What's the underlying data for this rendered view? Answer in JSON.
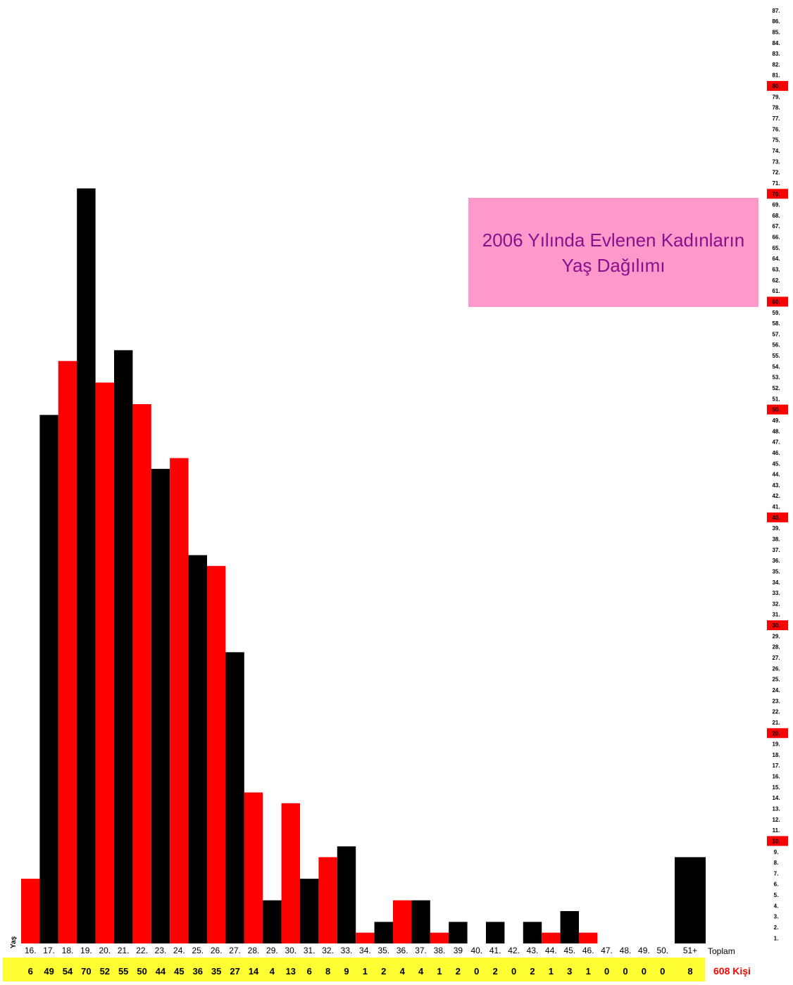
{
  "chart_data": {
    "type": "bar",
    "title_line1": "2006 Yılında Evlenen Kadınların",
    "title_line2": "Yaş Dağılımı",
    "xlabel": "Yaş",
    "categories": [
      "16.",
      "17.",
      "18.",
      "19.",
      "20.",
      "21.",
      "22.",
      "23.",
      "24.",
      "25.",
      "26.",
      "27.",
      "28.",
      "29.",
      "30.",
      "31.",
      "32.",
      "33.",
      "34.",
      "35.",
      "36.",
      "37.",
      "38.",
      "39",
      "40.",
      "41.",
      "42.",
      "43.",
      "44.",
      "45.",
      "46.",
      "47.",
      "48.",
      "49.",
      "50.",
      "51+"
    ],
    "values": [
      6,
      49,
      54,
      70,
      52,
      55,
      50,
      44,
      45,
      36,
      35,
      27,
      14,
      4,
      13,
      6,
      8,
      9,
      1,
      2,
      4,
      4,
      1,
      2,
      0,
      2,
      0,
      2,
      1,
      3,
      1,
      0,
      0,
      0,
      0,
      8
    ],
    "bar_colors": [
      "#ff0000",
      "#000000"
    ],
    "ylim": [
      0,
      87
    ],
    "y_highlight_every": 10,
    "y_highlight_color": "#ff0000",
    "total_label": "Toplam",
    "total_value": "608 Kişi",
    "count_row_color": "#ffff33",
    "total_color": "#ff0000"
  }
}
